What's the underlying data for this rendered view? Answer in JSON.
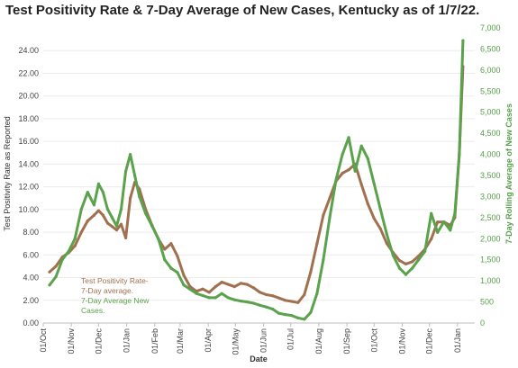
{
  "title": "Test Positivity Rate & 7-Day Average of New Cases, Kentucky as of 1/7/22.",
  "chart_data": {
    "type": "line",
    "xlabel": "Date",
    "ylabel_left": "Test Positivity Rate as Reported",
    "ylabel_right": "7-Day Rolling Average of New Cases",
    "ylim_left": [
      0,
      26
    ],
    "ylim_right": [
      0,
      7000
    ],
    "x_ticks": [
      "01/Oct",
      "01/Nov",
      "01/Dec",
      "01/Jan",
      "01/Feb",
      "01/Mar",
      "01/Apr",
      "01/May",
      "01/Jun",
      "01/Jul",
      "01/Aug",
      "01/Sep",
      "01/Oct",
      "01/Nov",
      "01/Dec",
      "01/Jan"
    ],
    "y_ticks_left": [
      "0.00",
      "2.00",
      "4.00",
      "6.00",
      "8.00",
      "10.00",
      "12.00",
      "14.00",
      "16.00",
      "18.00",
      "20.00",
      "22.00",
      "24.00"
    ],
    "y_ticks_right": [
      "0",
      "500",
      "1,000",
      "1,500",
      "2,000",
      "2,500",
      "3,000",
      "3,500",
      "4,000",
      "4,500",
      "5,000",
      "5,500",
      "6,000",
      "6,500",
      "7,000"
    ],
    "annotation": {
      "line1": "Test Positivity Rate-",
      "line2": "7-Day average.",
      "line3": "7-Day Average New",
      "line4": "Cases."
    },
    "colors": {
      "positivity": "#a0704f",
      "cases": "#5aa24b"
    },
    "series": [
      {
        "name": "Test Positivity Rate- 7-Day average.",
        "axis": "left",
        "x": [
          "2020-10-08",
          "2020-10-15",
          "2020-10-22",
          "2020-10-29",
          "2020-11-05",
          "2020-11-12",
          "2020-11-19",
          "2020-11-26",
          "2020-12-01",
          "2020-12-06",
          "2020-12-11",
          "2020-12-16",
          "2020-12-21",
          "2020-12-26",
          "2020-12-31",
          "2021-01-05",
          "2021-01-10",
          "2021-01-15",
          "2021-01-22",
          "2021-01-29",
          "2021-02-05",
          "2021-02-12",
          "2021-02-19",
          "2021-02-26",
          "2021-03-05",
          "2021-03-12",
          "2021-03-19",
          "2021-03-26",
          "2021-04-02",
          "2021-04-09",
          "2021-04-16",
          "2021-04-23",
          "2021-04-30",
          "2021-05-07",
          "2021-05-14",
          "2021-05-21",
          "2021-05-28",
          "2021-06-04",
          "2021-06-11",
          "2021-06-18",
          "2021-06-25",
          "2021-07-02",
          "2021-07-09",
          "2021-07-16",
          "2021-07-23",
          "2021-07-30",
          "2021-08-06",
          "2021-08-13",
          "2021-08-20",
          "2021-08-27",
          "2021-09-03",
          "2021-09-10",
          "2021-09-17",
          "2021-09-24",
          "2021-10-01",
          "2021-10-08",
          "2021-10-15",
          "2021-10-22",
          "2021-10-29",
          "2021-11-05",
          "2021-11-12",
          "2021-11-19",
          "2021-11-26",
          "2021-12-03",
          "2021-12-10",
          "2021-12-17",
          "2021-12-24",
          "2021-12-29",
          "2022-01-03",
          "2022-01-07"
        ],
        "values": [
          4.5,
          5.0,
          5.8,
          6.2,
          6.8,
          8.0,
          9.0,
          9.5,
          9.9,
          9.5,
          8.8,
          8.5,
          8.2,
          8.7,
          7.5,
          11.0,
          12.4,
          11.8,
          10.0,
          8.6,
          7.4,
          6.5,
          7.0,
          5.9,
          4.2,
          3.2,
          2.8,
          3.0,
          2.7,
          3.2,
          3.6,
          3.4,
          3.2,
          3.5,
          3.4,
          3.1,
          2.7,
          2.5,
          2.4,
          2.2,
          2.0,
          1.9,
          1.8,
          2.5,
          4.5,
          7.0,
          9.5,
          11.0,
          12.5,
          13.2,
          13.5,
          14.0,
          12.2,
          10.5,
          9.2,
          8.3,
          7.0,
          6.2,
          5.5,
          5.2,
          5.4,
          5.9,
          6.5,
          7.4,
          8.9,
          8.9,
          8.6,
          9.3,
          15.0,
          22.6
        ]
      },
      {
        "name": "7-Day Average New Cases.",
        "axis": "right",
        "x": [
          "2020-10-08",
          "2020-10-15",
          "2020-10-22",
          "2020-10-29",
          "2020-11-05",
          "2020-11-12",
          "2020-11-19",
          "2020-11-26",
          "2020-12-01",
          "2020-12-06",
          "2020-12-11",
          "2020-12-16",
          "2020-12-21",
          "2020-12-26",
          "2020-12-31",
          "2021-01-05",
          "2021-01-10",
          "2021-01-15",
          "2021-01-22",
          "2021-01-29",
          "2021-02-05",
          "2021-02-12",
          "2021-02-19",
          "2021-02-26",
          "2021-03-05",
          "2021-03-12",
          "2021-03-19",
          "2021-03-26",
          "2021-04-02",
          "2021-04-09",
          "2021-04-16",
          "2021-04-23",
          "2021-04-30",
          "2021-05-07",
          "2021-05-14",
          "2021-05-21",
          "2021-05-28",
          "2021-06-04",
          "2021-06-11",
          "2021-06-18",
          "2021-06-25",
          "2021-07-02",
          "2021-07-09",
          "2021-07-16",
          "2021-07-23",
          "2021-07-30",
          "2021-08-06",
          "2021-08-13",
          "2021-08-20",
          "2021-08-27",
          "2021-09-03",
          "2021-09-10",
          "2021-09-17",
          "2021-09-24",
          "2021-10-01",
          "2021-10-08",
          "2021-10-15",
          "2021-10-22",
          "2021-10-29",
          "2021-11-05",
          "2021-11-12",
          "2021-11-19",
          "2021-11-26",
          "2021-12-03",
          "2021-12-10",
          "2021-12-17",
          "2021-12-24",
          "2021-12-29",
          "2022-01-03",
          "2022-01-07"
        ],
        "values": [
          900,
          1100,
          1500,
          1700,
          2000,
          2700,
          3100,
          2800,
          3300,
          3100,
          2700,
          2500,
          2300,
          2700,
          3600,
          4000,
          3500,
          3000,
          2600,
          2300,
          2000,
          1500,
          1300,
          1200,
          900,
          800,
          700,
          650,
          600,
          600,
          700,
          600,
          550,
          520,
          500,
          470,
          420,
          380,
          330,
          230,
          200,
          180,
          120,
          90,
          250,
          700,
          1500,
          2500,
          3400,
          4000,
          4400,
          3600,
          4200,
          3900,
          3300,
          2700,
          2100,
          1600,
          1300,
          1150,
          1300,
          1500,
          1700,
          2600,
          2150,
          2400,
          2200,
          2600,
          4000,
          6700
        ]
      }
    ]
  }
}
